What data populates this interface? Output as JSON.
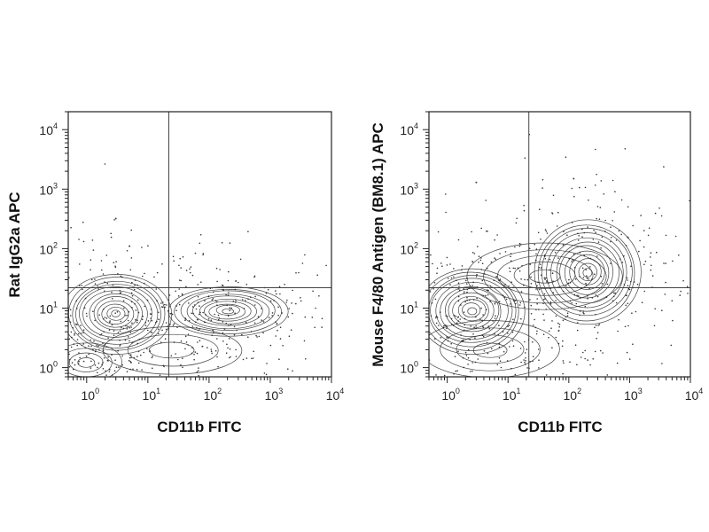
{
  "chart_data": [
    {
      "type": "contour",
      "xlabel": "CD11b FITC",
      "ylabel": "Rat IgG2a APC",
      "xscale": "log",
      "yscale": "log",
      "xlim": [
        0.5,
        10000
      ],
      "ylim": [
        0.7,
        20000
      ],
      "xticks": [
        {
          "base": "10",
          "exp": "0"
        },
        {
          "base": "10",
          "exp": "1"
        },
        {
          "base": "10",
          "exp": "2"
        },
        {
          "base": "10",
          "exp": "3"
        },
        {
          "base": "10",
          "exp": "4"
        }
      ],
      "yticks": [
        {
          "base": "10",
          "exp": "0"
        },
        {
          "base": "10",
          "exp": "1"
        },
        {
          "base": "10",
          "exp": "2"
        },
        {
          "base": "10",
          "exp": "3"
        },
        {
          "base": "10",
          "exp": "4"
        }
      ],
      "quadrant_gate": {
        "x": 22,
        "y": 22
      },
      "populations": [
        {
          "x": 3,
          "y": 8,
          "sx": 0.55,
          "sy": 0.42,
          "levels": 12,
          "density": 1.0
        },
        {
          "x": 200,
          "y": 9,
          "sx": 0.6,
          "sy": 0.26,
          "levels": 10,
          "density": 0.85
        },
        {
          "x": 1,
          "y": 1.2,
          "sx": 0.35,
          "sy": 0.2,
          "levels": 4,
          "density": 0.4
        },
        {
          "x": 25,
          "y": 2,
          "sx": 0.7,
          "sy": 0.25,
          "levels": 3,
          "density": 0.25
        }
      ],
      "outliers": [
        {
          "x": 3,
          "y": 320
        },
        {
          "x": 5,
          "y": 110
        }
      ]
    },
    {
      "type": "contour",
      "xlabel": "CD11b FITC",
      "ylabel": "Mouse F4/80 Antigen (BM8.1) APC",
      "xscale": "log",
      "yscale": "log",
      "xlim": [
        0.5,
        10000
      ],
      "ylim": [
        0.7,
        20000
      ],
      "xticks": [
        {
          "base": "10",
          "exp": "0"
        },
        {
          "base": "10",
          "exp": "1"
        },
        {
          "base": "10",
          "exp": "2"
        },
        {
          "base": "10",
          "exp": "3"
        },
        {
          "base": "10",
          "exp": "4"
        }
      ],
      "yticks": [
        {
          "base": "10",
          "exp": "0"
        },
        {
          "base": "10",
          "exp": "1"
        },
        {
          "base": "10",
          "exp": "2"
        },
        {
          "base": "10",
          "exp": "3"
        },
        {
          "base": "10",
          "exp": "4"
        }
      ],
      "quadrant_gate": {
        "x": 22,
        "y": 22
      },
      "populations": [
        {
          "x": 2.5,
          "y": 9,
          "sx": 0.55,
          "sy": 0.45,
          "levels": 12,
          "density": 1.0
        },
        {
          "x": 200,
          "y": 40,
          "sx": 0.55,
          "sy": 0.55,
          "levels": 12,
          "density": 0.9
        },
        {
          "x": 40,
          "y": 35,
          "sx": 0.8,
          "sy": 0.35,
          "levels": 5,
          "density": 0.4
        },
        {
          "x": 5,
          "y": 2,
          "sx": 0.7,
          "sy": 0.3,
          "levels": 4,
          "density": 0.35
        }
      ],
      "outliers": [
        {
          "x": 3,
          "y": 1300
        },
        {
          "x": 120,
          "y": 1500
        }
      ]
    }
  ]
}
